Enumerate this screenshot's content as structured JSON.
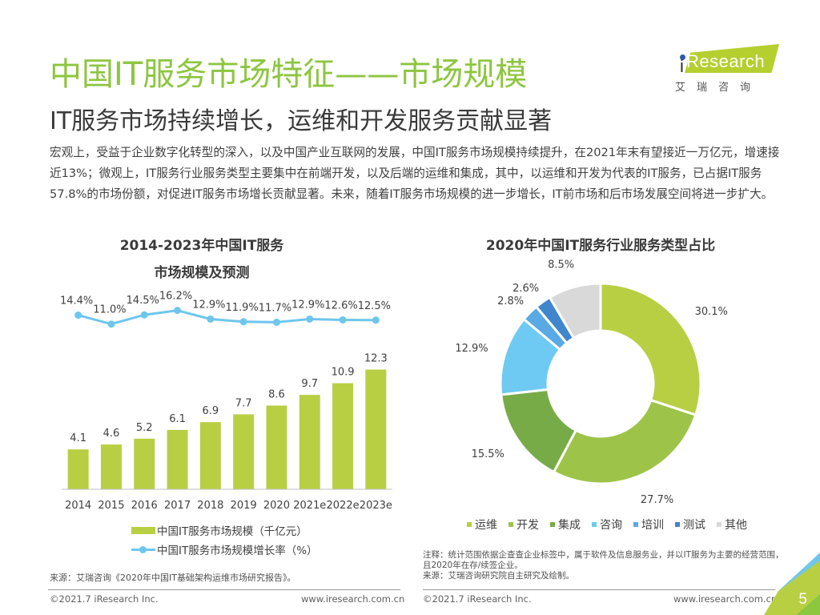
{
  "header": {
    "title": "中国IT服务市场特征——市场规模",
    "subtitle": "IT服务市场持续增长，运维和开发服务贡献显著"
  },
  "logo": {
    "brand_prefix": "i",
    "brand_text": "Research",
    "cn_text": "艾瑞咨询"
  },
  "intro": "宏观上，受益于企业数字化转型的深入，以及中国产业互联网的发展，中国IT服务市场规模持续提升，在2021年末有望接近一万亿元，增速接近13%；微观上，IT服务行业服务类型主要集中在前端开发，以及后端的运维和集成，其中，以运维和开发为代表的IT服务，已占据IT服务57.8%的市场份额，对促进IT服务市场增长贡献显著。未来，随着IT服务市场规模的进一步增长，IT前市场和后市场发展空间将进一步扩大。",
  "colors": {
    "title_green": "#8dc63f",
    "bar_green": "#b8cf44",
    "line_blue": "#6ec6ed"
  },
  "chart_data": [
    {
      "type": "bar+line",
      "title_line1": "2014-2023年中国IT服务",
      "title_line2": "市场规模及预测",
      "categories": [
        "2014",
        "2015",
        "2016",
        "2017",
        "2018",
        "2019",
        "2020",
        "2021e",
        "2022e",
        "2023e"
      ],
      "series": [
        {
          "name": "中国IT服务市场规模（千亿元）",
          "kind": "bar",
          "color": "#b8cf44",
          "values": [
            4.1,
            4.6,
            5.2,
            6.1,
            6.9,
            7.7,
            8.6,
            9.7,
            10.9,
            12.3
          ],
          "labels": [
            "4.1",
            "4.6",
            "5.2",
            "6.1",
            "6.9",
            "7.7",
            "8.6",
            "9.7",
            "10.9",
            "12.3"
          ]
        },
        {
          "name": "中国IT服务市场规模增长率（%）",
          "kind": "line",
          "color": "#6ec6ed",
          "values": [
            14.4,
            11.0,
            14.5,
            16.2,
            12.9,
            11.9,
            11.7,
            12.9,
            12.6,
            12.5
          ],
          "labels": [
            "14.4%",
            "11.0%",
            "14.5%",
            "16.2%",
            "12.9%",
            "11.9%",
            "11.7%",
            "12.9%",
            "12.6%",
            "12.5%"
          ]
        }
      ],
      "ylim_bar": [
        0,
        13
      ],
      "grid": false,
      "legend_position": "bottom"
    },
    {
      "type": "pie",
      "donut": true,
      "title": "2020年中国IT服务行业服务类型占比",
      "slices": [
        {
          "name": "运维",
          "value": 30.1,
          "label": "30.1%",
          "color": "#b8cf44"
        },
        {
          "name": "开发",
          "value": 27.7,
          "label": "27.7%",
          "color": "#9dc449"
        },
        {
          "name": "集成",
          "value": 15.5,
          "label": "15.5%",
          "color": "#77ab48"
        },
        {
          "name": "咨询",
          "value": 12.9,
          "label": "12.9%",
          "color": "#6ecaf2"
        },
        {
          "name": "培训",
          "value": 2.8,
          "label": "2.8%",
          "color": "#58a9e4"
        },
        {
          "name": "测试",
          "value": 2.6,
          "label": "2.6%",
          "color": "#3f86cc"
        },
        {
          "name": "其他",
          "value": 8.5,
          "label": "8.5%",
          "color": "#d9d9d9"
        }
      ],
      "legend_position": "bottom"
    }
  ],
  "source_left": "来源：艾瑞咨询《2020年中国IT基础架构运维市场研究报告》。",
  "note_right": {
    "line1": "注释：统计范围依据企查查企业标签中，属于软件及信息服务业，并以IT服务为主要的经营范围，且2020年在存/续签企业。",
    "line2": "来源：艾瑞咨询研究院自主研究及绘制。"
  },
  "footer": {
    "copyright": "©2021.7 iResearch Inc.",
    "website": "www.iresearch.com.cn",
    "page_number": "5"
  }
}
